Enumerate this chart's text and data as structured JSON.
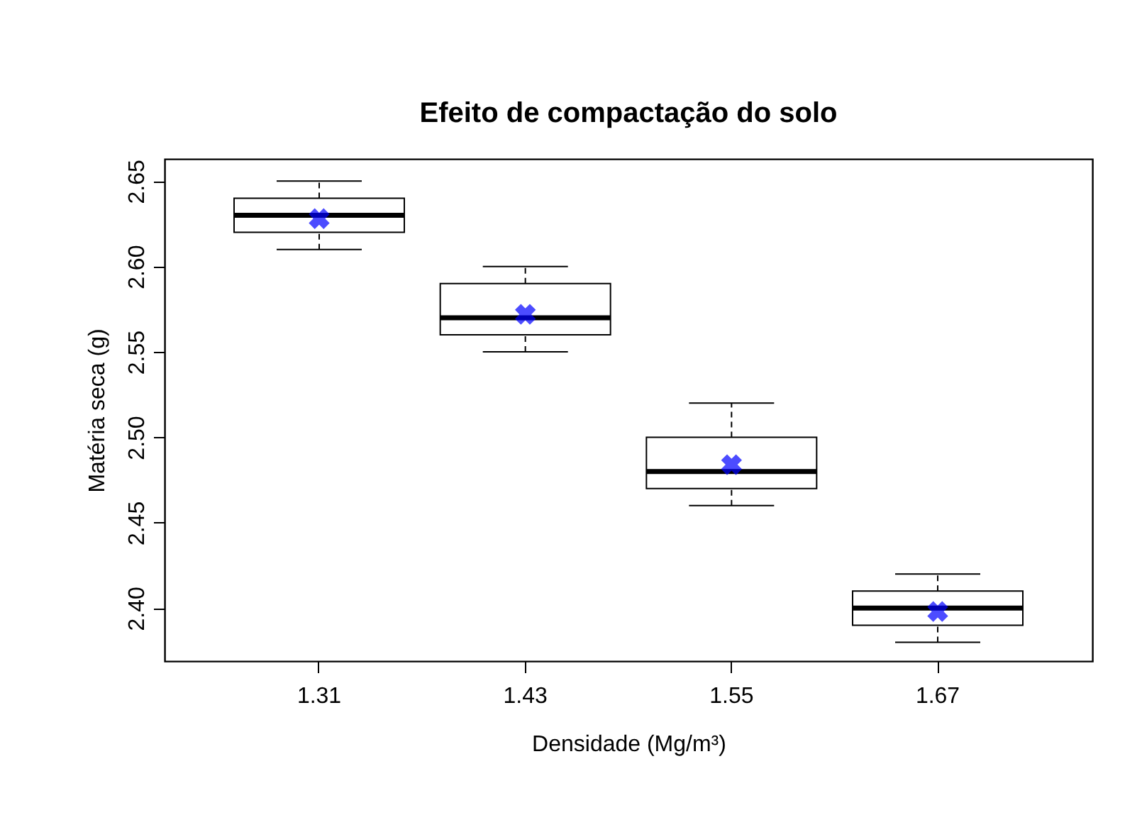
{
  "chart_data": {
    "type": "box",
    "title": "Efeito de compactação do solo",
    "xlabel": "Densidade (Mg/m³)",
    "ylabel": "Matéria seca (g)",
    "categories": [
      "1.31",
      "1.43",
      "1.55",
      "1.67"
    ],
    "boxes": [
      {
        "low": 2.61,
        "q1": 2.62,
        "median": 2.63,
        "q3": 2.64,
        "high": 2.65
      },
      {
        "low": 2.55,
        "q1": 2.56,
        "median": 2.57,
        "q3": 2.59,
        "high": 2.6
      },
      {
        "low": 2.46,
        "q1": 2.47,
        "median": 2.48,
        "q3": 2.5,
        "high": 2.52
      },
      {
        "low": 2.38,
        "q1": 2.39,
        "median": 2.4,
        "q3": 2.41,
        "high": 2.42
      }
    ],
    "series": [
      {
        "type": "scatter",
        "color": "#0000ff",
        "marker": "cross",
        "x": [
          "1.31",
          "1.43",
          "1.55",
          "1.67"
        ],
        "values": [
          2.628,
          2.572,
          2.484,
          2.398
        ]
      }
    ],
    "ylim": [
      2.369,
      2.663
    ],
    "yticks": [
      {
        "value": 2.4,
        "label": "2.40"
      },
      {
        "value": 2.45,
        "label": "2.45"
      },
      {
        "value": 2.5,
        "label": "2.50"
      },
      {
        "value": 2.55,
        "label": "2.55"
      },
      {
        "value": 2.6,
        "label": "2.60"
      },
      {
        "value": 2.65,
        "label": "2.65"
      }
    ],
    "grid": false
  }
}
